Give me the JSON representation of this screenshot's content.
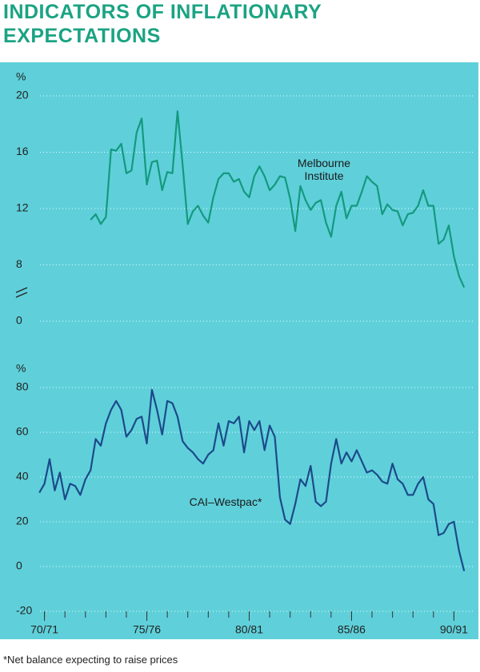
{
  "title": [
    "INDICATORS OF INFLATIONARY",
    "EXPECTATIONS"
  ],
  "footnote": "*Net balance expecting to raise prices",
  "chart_data": [
    {
      "type": "line",
      "y_unit": "%",
      "ylim": [
        0,
        20
      ],
      "axis_break": [
        0,
        4
      ],
      "yticks": [
        20,
        16,
        12,
        8,
        0
      ],
      "grid": true,
      "xlim": [
        1970,
        1992
      ],
      "series": [
        {
          "name": "Melbourne Institute",
          "color": "#14997f",
          "x": [
            1973.25,
            1973.5,
            1973.75,
            1974,
            1974.25,
            1974.5,
            1974.75,
            1975,
            1975.25,
            1975.5,
            1975.75,
            1976,
            1976.25,
            1976.5,
            1976.75,
            1977,
            1977.25,
            1977.5,
            1977.75,
            1978,
            1978.25,
            1978.5,
            1978.75,
            1979,
            1979.25,
            1979.5,
            1979.75,
            1980,
            1980.25,
            1980.5,
            1980.75,
            1981,
            1981.25,
            1981.5,
            1981.75,
            1982,
            1982.25,
            1982.5,
            1982.75,
            1983,
            1983.25,
            1983.5,
            1983.75,
            1984,
            1984.25,
            1984.5,
            1984.75,
            1985,
            1985.25,
            1985.5,
            1985.75,
            1986,
            1986.25,
            1986.5,
            1986.75,
            1987,
            1987.25,
            1987.5,
            1987.75,
            1988,
            1988.25,
            1988.5,
            1988.75,
            1989,
            1989.25,
            1989.5,
            1989.75,
            1990,
            1990.25,
            1990.5,
            1990.75,
            1991,
            1991.25,
            1991.5
          ],
          "values": [
            11.2,
            11.6,
            10.9,
            11.4,
            16.2,
            16.1,
            16.6,
            14.5,
            14.7,
            17.4,
            18.4,
            13.7,
            15.3,
            15.4,
            13.3,
            14.6,
            14.5,
            18.9,
            15.1,
            10.9,
            11.8,
            12.2,
            11.5,
            11.0,
            12.8,
            14.1,
            14.5,
            14.5,
            13.9,
            14.1,
            13.2,
            12.8,
            14.3,
            15.0,
            14.3,
            13.3,
            13.7,
            14.3,
            14.2,
            12.7,
            10.4,
            13.6,
            12.6,
            11.9,
            12.4,
            12.6,
            11.0,
            10.0,
            12.2,
            13.2,
            11.3,
            12.2,
            12.2,
            13.2,
            14.3,
            13.9,
            13.6,
            11.6,
            12.3,
            11.9,
            11.8,
            10.8,
            11.6,
            11.7,
            12.2,
            13.3,
            12.2,
            12.2,
            9.5,
            9.8,
            10.8,
            8.6,
            7.2,
            6.4
          ]
        }
      ]
    },
    {
      "type": "line",
      "y_unit": "%",
      "ylim": [
        -20,
        80
      ],
      "yticks": [
        80,
        60,
        40,
        20,
        0,
        -20
      ],
      "grid": true,
      "xlim": [
        1970,
        1992
      ],
      "xticks": [
        {
          "value": 1971,
          "label": "70/71"
        },
        {
          "value": 1976,
          "label": "75/76"
        },
        {
          "value": 1981,
          "label": "80/81"
        },
        {
          "value": 1986,
          "label": "85/86"
        },
        {
          "value": 1991,
          "label": "90/91"
        }
      ],
      "xminorticks": [
        1971,
        1972,
        1973,
        1974,
        1975,
        1976,
        1977,
        1978,
        1979,
        1980,
        1981,
        1982,
        1983,
        1984,
        1985,
        1986,
        1987,
        1988,
        1989,
        1990,
        1991
      ],
      "series": [
        {
          "name": "CAI–Westpac*",
          "color": "#1c4a8a",
          "x": [
            1970.75,
            1971,
            1971.25,
            1971.5,
            1971.75,
            1972,
            1972.25,
            1972.5,
            1972.75,
            1973,
            1973.25,
            1973.5,
            1973.75,
            1974,
            1974.25,
            1974.5,
            1974.75,
            1975,
            1975.25,
            1975.5,
            1975.75,
            1976,
            1976.25,
            1976.5,
            1976.75,
            1977,
            1977.25,
            1977.5,
            1977.75,
            1978,
            1978.25,
            1978.5,
            1978.75,
            1979,
            1979.25,
            1979.5,
            1979.75,
            1980,
            1980.25,
            1980.5,
            1980.75,
            1981,
            1981.25,
            1981.5,
            1981.75,
            1982,
            1982.25,
            1982.5,
            1982.75,
            1983,
            1983.25,
            1983.5,
            1983.75,
            1984,
            1984.25,
            1984.5,
            1984.75,
            1985,
            1985.25,
            1985.5,
            1985.75,
            1986,
            1986.25,
            1986.5,
            1986.75,
            1987,
            1987.25,
            1987.5,
            1987.75,
            1988,
            1988.25,
            1988.5,
            1988.75,
            1989,
            1989.25,
            1989.5,
            1989.75,
            1990,
            1990.25,
            1990.5,
            1990.75,
            1991,
            1991.25,
            1991.5
          ],
          "values": [
            33,
            37,
            48,
            34,
            42,
            30,
            37,
            36,
            32,
            39,
            43,
            57,
            54,
            64,
            70,
            74,
            70,
            58,
            61,
            66,
            67,
            55,
            79,
            70,
            59,
            74,
            73,
            67,
            56,
            53,
            51,
            48,
            46,
            50,
            52,
            64,
            54,
            65,
            64,
            67,
            51,
            65,
            61,
            65,
            52,
            63,
            58,
            31,
            21,
            19,
            28,
            39,
            36,
            45,
            29,
            27,
            29,
            46,
            57,
            46,
            51,
            47,
            52,
            47,
            42,
            43,
            41,
            38,
            37,
            46,
            39,
            37,
            32,
            32,
            37,
            40,
            30,
            28,
            14,
            15,
            19,
            20,
            7,
            -2
          ]
        }
      ]
    }
  ]
}
